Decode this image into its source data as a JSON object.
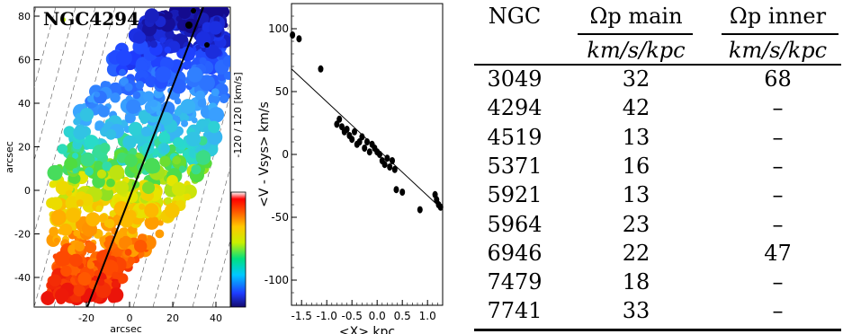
{
  "velocity_map": {
    "galaxy_label": "NGC4294",
    "ylabel": "arcsec",
    "xlabel": "arcsec",
    "x_ticks": [
      "-20",
      "0",
      "20",
      "40"
    ],
    "y_ticks": [
      "80",
      "60",
      "40",
      "20",
      "0",
      "-20",
      "-40"
    ],
    "colorbar_label": "-120 / 120  [km/s]"
  },
  "chart_data": {
    "type": "scatter",
    "xlabel": "<X> kpc",
    "ylabel": "<V - Vsys> km/s",
    "xlim": [
      -1.7,
      1.3
    ],
    "ylim": [
      -120,
      120
    ],
    "x_ticks": [
      -1.5,
      -1.0,
      -0.5,
      0.0,
      0.5,
      1.0
    ],
    "x_tick_labels": [
      "-1.5",
      "-1.0",
      "-0.5",
      "0.0",
      "0.5",
      "1.0"
    ],
    "y_ticks": [
      100,
      50,
      0,
      -50,
      -100
    ],
    "y_tick_labels": [
      "100",
      "50",
      "0",
      "-50",
      "-100"
    ],
    "fit_line": {
      "x": [
        -1.7,
        1.3
      ],
      "y": [
        68,
        -44
      ]
    },
    "points": [
      [
        -1.68,
        95
      ],
      [
        -1.55,
        92
      ],
      [
        -1.12,
        68
      ],
      [
        -0.8,
        24
      ],
      [
        -0.75,
        28
      ],
      [
        -0.7,
        22
      ],
      [
        -0.65,
        18
      ],
      [
        -0.6,
        20
      ],
      [
        -0.55,
        15
      ],
      [
        -0.5,
        12
      ],
      [
        -0.45,
        18
      ],
      [
        -0.4,
        8
      ],
      [
        -0.35,
        10
      ],
      [
        -0.3,
        14
      ],
      [
        -0.25,
        5
      ],
      [
        -0.2,
        10
      ],
      [
        -0.15,
        2
      ],
      [
        -0.1,
        8
      ],
      [
        -0.05,
        5
      ],
      [
        0.0,
        2
      ],
      [
        0.05,
        0
      ],
      [
        0.1,
        -5
      ],
      [
        0.15,
        -8
      ],
      [
        0.2,
        -3
      ],
      [
        0.25,
        -10
      ],
      [
        0.3,
        -5
      ],
      [
        0.35,
        -12
      ],
      [
        0.38,
        -28
      ],
      [
        0.5,
        -30
      ],
      [
        0.85,
        -44
      ],
      [
        1.15,
        -32
      ],
      [
        1.18,
        -36
      ],
      [
        1.22,
        -40
      ],
      [
        1.26,
        -42
      ]
    ]
  },
  "table": {
    "headers": [
      {
        "label": "NGC",
        "unit": ""
      },
      {
        "label": "Ωp main",
        "unit": "km/s/kpc"
      },
      {
        "label": "Ωp inner",
        "unit": "km/s/kpc"
      }
    ],
    "rows": [
      {
        "ngc": "3049",
        "main": "32",
        "inner": "68"
      },
      {
        "ngc": "4294",
        "main": "42",
        "inner": "–"
      },
      {
        "ngc": "4519",
        "main": "13",
        "inner": "–"
      },
      {
        "ngc": "5371",
        "main": "16",
        "inner": "–"
      },
      {
        "ngc": "5921",
        "main": "13",
        "inner": "–"
      },
      {
        "ngc": "5964",
        "main": "23",
        "inner": "–"
      },
      {
        "ngc": "6946",
        "main": "22",
        "inner": "47"
      },
      {
        "ngc": "7479",
        "main": "18",
        "inner": "–"
      },
      {
        "ngc": "7741",
        "main": "33",
        "inner": "–"
      }
    ]
  }
}
